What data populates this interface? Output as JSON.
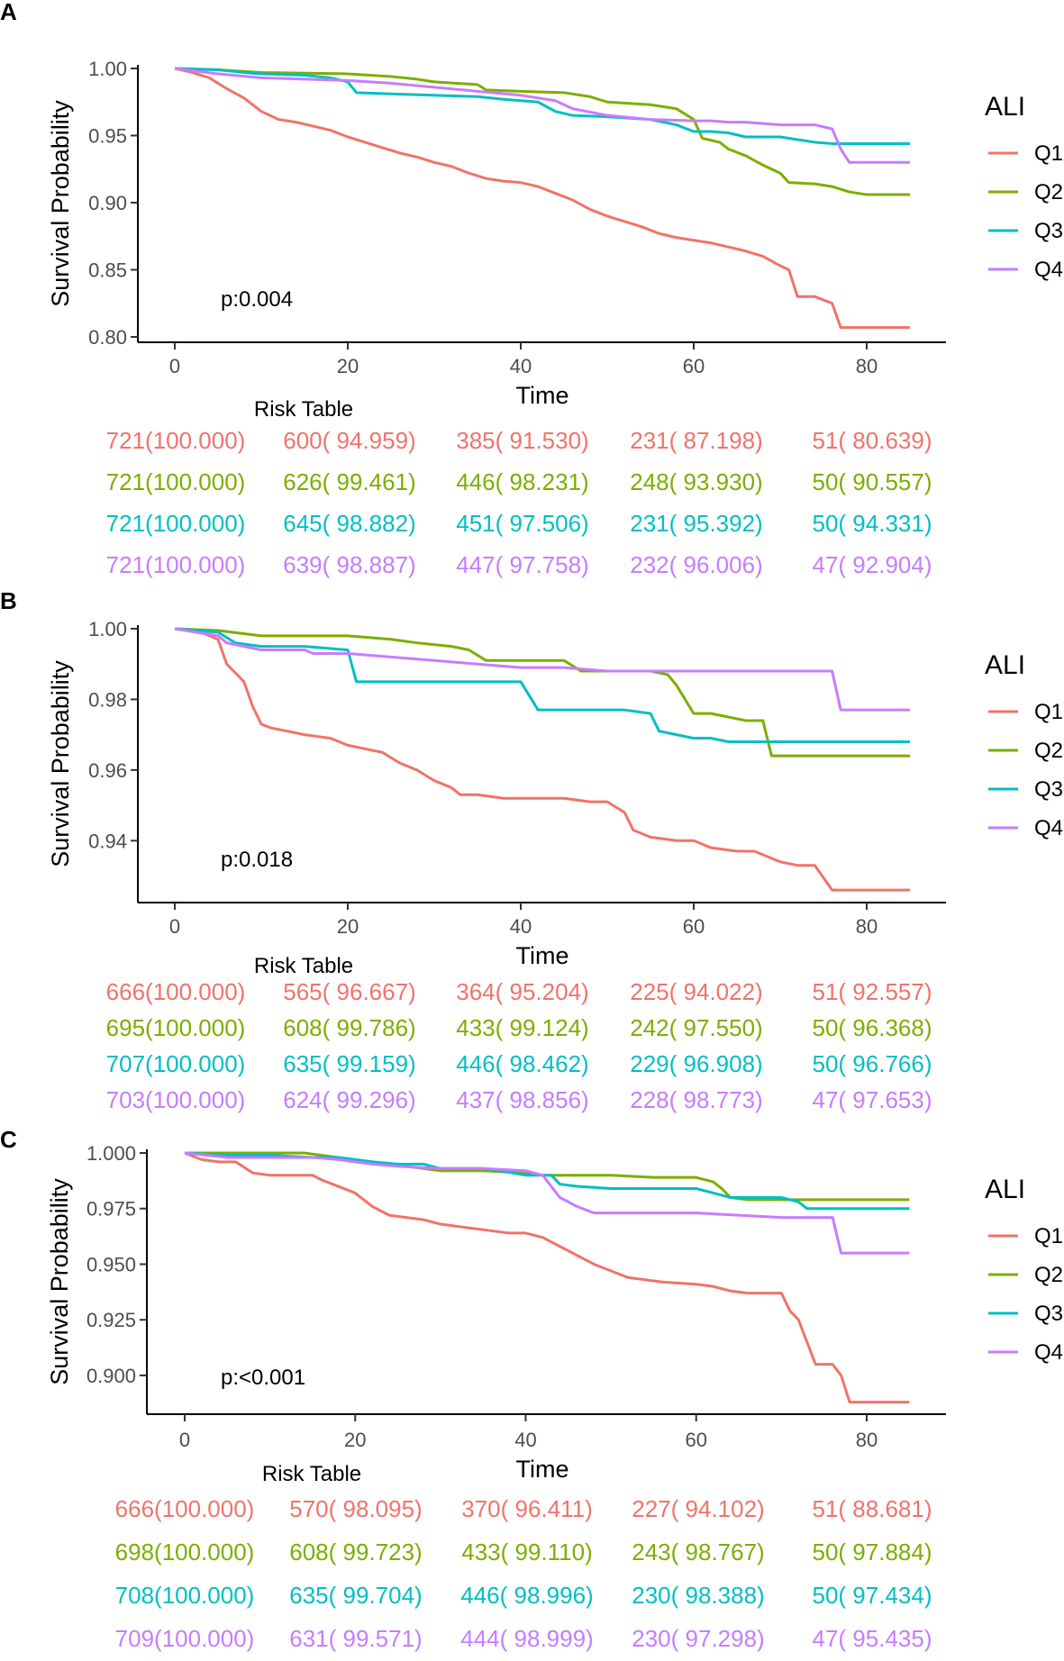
{
  "colors": {
    "Q1": "#F0736A",
    "Q2": "#7CAE00",
    "Q3": "#00BFC4",
    "Q4": "#C77CFF"
  },
  "chart_data": [
    {
      "panel": "A",
      "type": "line",
      "xlabel": "Time",
      "ylabel": "Survival Probability",
      "xticks": [
        0,
        20,
        40,
        60,
        80
      ],
      "yticks": [
        "0.80",
        "0.85",
        "0.90",
        "0.95",
        "1.00"
      ],
      "ylim": [
        0.8,
        1.0
      ],
      "xlim": [
        0,
        85
      ],
      "legend_title": "ALI",
      "legend_labels": [
        "Q1",
        "Q2",
        "Q3",
        "Q4"
      ],
      "pvalue": "p:0.004",
      "risk_table_title": "Risk Table",
      "series": [
        {
          "name": "Q1",
          "x": [
            0,
            2,
            4,
            6,
            8,
            10,
            12,
            14,
            16,
            18,
            20,
            22,
            24,
            26,
            28,
            30,
            32,
            34,
            36,
            38,
            40,
            42,
            44,
            46,
            48,
            50,
            52,
            54,
            56,
            58,
            60,
            62,
            64,
            66,
            68,
            70,
            71,
            72,
            74,
            76,
            77,
            78,
            80,
            85
          ],
          "y": [
            1.0,
            0.997,
            0.993,
            0.985,
            0.978,
            0.968,
            0.962,
            0.96,
            0.957,
            0.954,
            0.949,
            0.945,
            0.941,
            0.937,
            0.934,
            0.93,
            0.927,
            0.922,
            0.918,
            0.916,
            0.915,
            0.912,
            0.907,
            0.902,
            0.895,
            0.89,
            0.886,
            0.882,
            0.877,
            0.874,
            0.872,
            0.87,
            0.867,
            0.864,
            0.86,
            0.853,
            0.85,
            0.83,
            0.83,
            0.825,
            0.807,
            0.807,
            0.807,
            0.807
          ]
        },
        {
          "name": "Q2",
          "x": [
            0,
            5,
            10,
            20,
            25,
            28,
            30,
            35,
            36,
            40,
            45,
            48,
            50,
            55,
            58,
            60,
            61,
            63,
            64,
            66,
            68,
            70,
            71,
            74,
            76,
            78,
            80,
            85
          ],
          "y": [
            1.0,
            0.999,
            0.997,
            0.996,
            0.994,
            0.992,
            0.99,
            0.988,
            0.984,
            0.983,
            0.982,
            0.979,
            0.975,
            0.973,
            0.97,
            0.962,
            0.948,
            0.945,
            0.94,
            0.935,
            0.928,
            0.922,
            0.915,
            0.914,
            0.912,
            0.908,
            0.906,
            0.906
          ]
        },
        {
          "name": "Q3",
          "x": [
            0,
            5,
            8,
            10,
            15,
            18,
            20,
            21,
            25,
            30,
            35,
            38,
            40,
            42,
            44,
            46,
            50,
            55,
            58,
            60,
            62,
            64,
            66,
            68,
            70,
            72,
            74,
            76,
            78,
            80,
            85
          ],
          "y": [
            1.0,
            0.999,
            0.997,
            0.996,
            0.995,
            0.993,
            0.99,
            0.982,
            0.981,
            0.98,
            0.979,
            0.977,
            0.976,
            0.975,
            0.968,
            0.965,
            0.964,
            0.962,
            0.958,
            0.953,
            0.953,
            0.952,
            0.949,
            0.949,
            0.949,
            0.947,
            0.945,
            0.944,
            0.944,
            0.944,
            0.944
          ]
        },
        {
          "name": "Q4",
          "x": [
            0,
            5,
            10,
            15,
            20,
            25,
            30,
            35,
            40,
            44,
            46,
            50,
            55,
            60,
            62,
            64,
            66,
            68,
            70,
            72,
            74,
            76,
            77,
            78,
            80,
            85
          ],
          "y": [
            1.0,
            0.996,
            0.993,
            0.992,
            0.991,
            0.989,
            0.986,
            0.983,
            0.98,
            0.976,
            0.97,
            0.965,
            0.962,
            0.961,
            0.961,
            0.96,
            0.96,
            0.959,
            0.958,
            0.958,
            0.958,
            0.955,
            0.94,
            0.93,
            0.93,
            0.93
          ]
        }
      ],
      "risk_table": [
        [
          "721(100.000)",
          "600( 94.959)",
          "385( 91.530)",
          "231( 87.198)",
          "51( 80.639)"
        ],
        [
          "721(100.000)",
          "626( 99.461)",
          "446( 98.231)",
          "248( 93.930)",
          "50( 90.557)"
        ],
        [
          "721(100.000)",
          "645( 98.882)",
          "451( 97.506)",
          "231( 95.392)",
          "50( 94.331)"
        ],
        [
          "721(100.000)",
          "639( 98.887)",
          "447( 97.758)",
          "232( 96.006)",
          "47( 92.904)"
        ]
      ]
    },
    {
      "panel": "B",
      "type": "line",
      "xlabel": "Time",
      "ylabel": "Survival Probability",
      "xticks": [
        0,
        20,
        40,
        60,
        80
      ],
      "yticks": [
        "0.94",
        "0.96",
        "0.98",
        "1.00"
      ],
      "ylim": [
        0.924,
        1.0
      ],
      "xlim": [
        0,
        85
      ],
      "legend_title": "ALI",
      "legend_labels": [
        "Q1",
        "Q2",
        "Q3",
        "Q4"
      ],
      "pvalue": "p:0.018",
      "risk_table_title": "Risk Table",
      "series": [
        {
          "name": "Q1",
          "x": [
            0,
            3,
            5,
            6,
            8,
            9,
            10,
            11,
            13,
            15,
            18,
            20,
            22,
            24,
            26,
            28,
            30,
            32,
            33,
            35,
            38,
            40,
            42,
            45,
            48,
            50,
            52,
            53,
            55,
            58,
            60,
            62,
            65,
            67,
            70,
            72,
            74,
            76,
            78,
            80,
            85
          ],
          "y": [
            1.0,
            0.999,
            0.997,
            0.99,
            0.985,
            0.978,
            0.973,
            0.972,
            0.971,
            0.97,
            0.969,
            0.967,
            0.966,
            0.965,
            0.962,
            0.96,
            0.957,
            0.955,
            0.953,
            0.953,
            0.952,
            0.952,
            0.952,
            0.952,
            0.951,
            0.951,
            0.948,
            0.943,
            0.941,
            0.94,
            0.94,
            0.938,
            0.937,
            0.937,
            0.934,
            0.933,
            0.933,
            0.926,
            0.926,
            0.926,
            0.926
          ]
        },
        {
          "name": "Q2",
          "x": [
            0,
            5,
            10,
            20,
            25,
            28,
            32,
            34,
            36,
            40,
            45,
            47,
            50,
            55,
            57,
            58,
            60,
            62,
            64,
            66,
            68,
            69,
            70,
            75,
            80,
            85
          ],
          "y": [
            1.0,
            0.9995,
            0.998,
            0.998,
            0.997,
            0.996,
            0.995,
            0.994,
            0.991,
            0.991,
            0.991,
            0.988,
            0.988,
            0.988,
            0.987,
            0.984,
            0.976,
            0.976,
            0.975,
            0.974,
            0.974,
            0.964,
            0.964,
            0.964,
            0.964,
            0.964
          ]
        },
        {
          "name": "Q3",
          "x": [
            0,
            5,
            7,
            10,
            15,
            20,
            21,
            25,
            30,
            35,
            40,
            42,
            45,
            50,
            52,
            55,
            56,
            58,
            60,
            62,
            64,
            66,
            68,
            70,
            75,
            80,
            85
          ],
          "y": [
            1.0,
            0.999,
            0.996,
            0.995,
            0.995,
            0.994,
            0.985,
            0.985,
            0.985,
            0.985,
            0.985,
            0.977,
            0.977,
            0.977,
            0.977,
            0.976,
            0.971,
            0.97,
            0.969,
            0.969,
            0.968,
            0.968,
            0.968,
            0.968,
            0.968,
            0.968,
            0.968
          ]
        },
        {
          "name": "Q4",
          "x": [
            0,
            5,
            6,
            8,
            10,
            15,
            16,
            20,
            25,
            30,
            35,
            40,
            45,
            50,
            55,
            60,
            65,
            70,
            75,
            76,
            77,
            80,
            85
          ],
          "y": [
            1.0,
            0.998,
            0.996,
            0.995,
            0.994,
            0.994,
            0.993,
            0.993,
            0.992,
            0.991,
            0.99,
            0.989,
            0.989,
            0.988,
            0.988,
            0.988,
            0.988,
            0.988,
            0.988,
            0.988,
            0.977,
            0.977,
            0.977
          ]
        }
      ],
      "risk_table": [
        [
          "666(100.000)",
          "565( 96.667)",
          "364( 95.204)",
          "225( 94.022)",
          "51( 92.557)"
        ],
        [
          "695(100.000)",
          "608( 99.786)",
          "433( 99.124)",
          "242( 97.550)",
          "50( 96.368)"
        ],
        [
          "707(100.000)",
          "635( 99.159)",
          "446( 98.462)",
          "229( 96.908)",
          "50( 96.766)"
        ],
        [
          "703(100.000)",
          "624( 99.296)",
          "437( 98.856)",
          "228( 98.773)",
          "47( 97.653)"
        ]
      ]
    },
    {
      "panel": "C",
      "type": "line",
      "xlabel": "Time",
      "ylabel": "Survival Probability",
      "xticks": [
        0,
        20,
        40,
        60,
        80
      ],
      "yticks": [
        "0.900",
        "0.925",
        "0.950",
        "0.975",
        "1.000"
      ],
      "ylim": [
        0.885,
        1.0
      ],
      "xlim": [
        0,
        85
      ],
      "legend_title": "ALI",
      "legend_labels": [
        "Q1",
        "Q2",
        "Q3",
        "Q4"
      ],
      "pvalue": "p:<0.001",
      "risk_table_title": "Risk Table",
      "series": [
        {
          "name": "Q1",
          "x": [
            0,
            2,
            4,
            6,
            8,
            10,
            12,
            15,
            16,
            18,
            20,
            22,
            24,
            26,
            28,
            30,
            32,
            34,
            36,
            38,
            40,
            42,
            44,
            46,
            48,
            50,
            52,
            54,
            56,
            60,
            62,
            64,
            66,
            68,
            70,
            71,
            72,
            74,
            76,
            77,
            78,
            80,
            85
          ],
          "y": [
            1.0,
            0.997,
            0.996,
            0.996,
            0.991,
            0.99,
            0.99,
            0.99,
            0.988,
            0.985,
            0.982,
            0.976,
            0.972,
            0.971,
            0.97,
            0.968,
            0.967,
            0.966,
            0.965,
            0.964,
            0.964,
            0.962,
            0.958,
            0.954,
            0.95,
            0.947,
            0.944,
            0.943,
            0.942,
            0.941,
            0.94,
            0.938,
            0.937,
            0.937,
            0.937,
            0.929,
            0.925,
            0.905,
            0.905,
            0.9,
            0.888,
            0.888,
            0.888
          ]
        },
        {
          "name": "Q2",
          "x": [
            0,
            5,
            10,
            14,
            16,
            18,
            20,
            22,
            24,
            26,
            28,
            30,
            35,
            40,
            42,
            45,
            50,
            55,
            60,
            62,
            63,
            64,
            66,
            70,
            75,
            80,
            85
          ],
          "y": [
            1.0,
            1.0,
            1.0,
            1.0,
            0.999,
            0.998,
            0.997,
            0.996,
            0.995,
            0.994,
            0.993,
            0.992,
            0.992,
            0.991,
            0.99,
            0.99,
            0.99,
            0.989,
            0.989,
            0.987,
            0.984,
            0.98,
            0.979,
            0.979,
            0.979,
            0.979,
            0.979
          ]
        },
        {
          "name": "Q3",
          "x": [
            0,
            5,
            10,
            15,
            18,
            20,
            22,
            25,
            28,
            30,
            35,
            37,
            40,
            43,
            44,
            46,
            50,
            55,
            60,
            62,
            64,
            66,
            70,
            72,
            73,
            75,
            80,
            85
          ],
          "y": [
            1.0,
            0.999,
            0.999,
            0.998,
            0.998,
            0.997,
            0.996,
            0.995,
            0.995,
            0.993,
            0.993,
            0.992,
            0.99,
            0.99,
            0.986,
            0.985,
            0.984,
            0.984,
            0.984,
            0.982,
            0.98,
            0.98,
            0.98,
            0.978,
            0.975,
            0.975,
            0.975,
            0.975
          ]
        },
        {
          "name": "Q4",
          "x": [
            0,
            5,
            10,
            15,
            18,
            20,
            22,
            25,
            30,
            35,
            40,
            42,
            43,
            44,
            46,
            48,
            50,
            55,
            60,
            65,
            70,
            74,
            76,
            77,
            78,
            80,
            85
          ],
          "y": [
            1.0,
            0.998,
            0.998,
            0.998,
            0.997,
            0.996,
            0.995,
            0.994,
            0.993,
            0.993,
            0.992,
            0.99,
            0.985,
            0.98,
            0.976,
            0.973,
            0.973,
            0.973,
            0.973,
            0.972,
            0.971,
            0.971,
            0.971,
            0.955,
            0.955,
            0.955,
            0.955
          ]
        }
      ],
      "risk_table": [
        [
          "666(100.000)",
          "570( 98.095)",
          "370( 96.411)",
          "227( 94.102)",
          "51( 88.681)"
        ],
        [
          "698(100.000)",
          "608( 99.723)",
          "433( 99.110)",
          "243( 98.767)",
          "50( 97.884)"
        ],
        [
          "708(100.000)",
          "635( 99.704)",
          "446( 98.996)",
          "230( 98.388)",
          "50( 97.434)"
        ],
        [
          "709(100.000)",
          "631( 99.571)",
          "444( 98.999)",
          "230( 97.298)",
          "47( 95.435)"
        ]
      ]
    }
  ]
}
